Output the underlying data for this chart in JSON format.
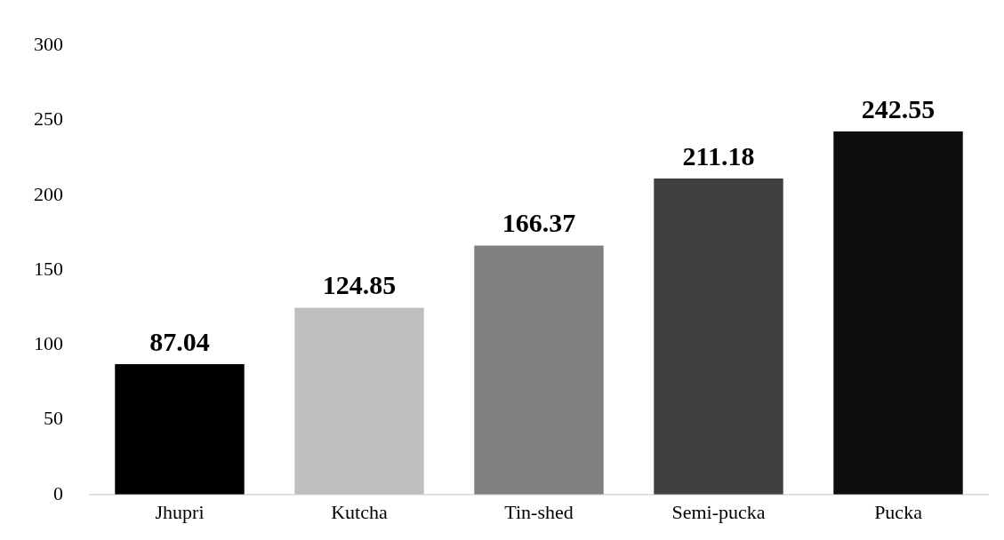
{
  "chart_data": {
    "type": "bar",
    "categories": [
      "Jhupri",
      "Kutcha",
      "Tin-shed",
      "Semi-pucka",
      "Pucka"
    ],
    "values": [
      87.04,
      124.85,
      166.37,
      211.18,
      242.55
    ],
    "colors": [
      "#000000",
      "#bfbfbf",
      "#808080",
      "#404040",
      "#0d0d0d"
    ],
    "ylim": [
      0,
      300
    ],
    "yticks": [
      0,
      50,
      100,
      150,
      200,
      250,
      300
    ],
    "grid": false,
    "legend": false,
    "data_labels": true
  }
}
